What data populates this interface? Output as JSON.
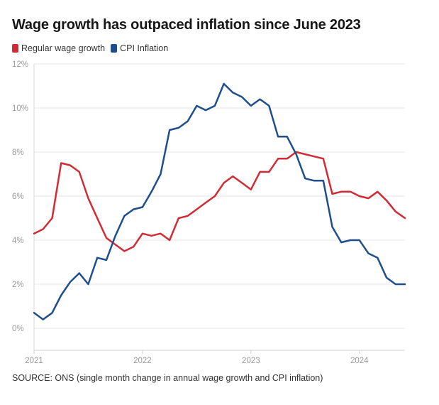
{
  "chart_data": {
    "type": "line",
    "title": "Wage growth has outpaced inflation since June 2023",
    "source": "SOURCE: ONS (single month change in annual wage growth and CPI inflation)",
    "y_ticks": [
      "12%",
      "10%",
      "8%",
      "6%",
      "4%",
      "2%",
      "0%"
    ],
    "y_tick_values": [
      12,
      10,
      8,
      6,
      4,
      2,
      0
    ],
    "x_ticks": [
      "2021",
      "2022",
      "2023",
      "2024"
    ],
    "x_tick_values": [
      2021,
      2022,
      2023,
      2024
    ],
    "xlim": [
      2021,
      2024.42
    ],
    "ylim": [
      -1,
      12
    ],
    "grid": true,
    "legend_placement": "top-left",
    "series": [
      {
        "name": "Regular wage growth",
        "color": "#d12c35",
        "x": [
          2021.0,
          2021.083,
          2021.167,
          2021.25,
          2021.333,
          2021.417,
          2021.5,
          2021.583,
          2021.667,
          2021.75,
          2021.833,
          2021.917,
          2022.0,
          2022.083,
          2022.167,
          2022.25,
          2022.333,
          2022.417,
          2022.5,
          2022.583,
          2022.667,
          2022.75,
          2022.833,
          2022.917,
          2023.0,
          2023.083,
          2023.167,
          2023.25,
          2023.333,
          2023.417,
          2023.5,
          2023.583,
          2023.667,
          2023.75,
          2023.833,
          2023.917,
          2024.0,
          2024.083,
          2024.167,
          2024.25,
          2024.333,
          2024.42
        ],
        "values": [
          4.3,
          4.5,
          5.0,
          7.5,
          7.4,
          7.1,
          5.9,
          5.0,
          4.1,
          3.8,
          3.5,
          3.7,
          4.3,
          4.2,
          4.3,
          4.0,
          5.0,
          5.1,
          5.4,
          5.7,
          6.0,
          6.6,
          6.9,
          6.6,
          6.3,
          7.1,
          7.1,
          7.7,
          7.7,
          8.0,
          7.9,
          7.8,
          7.7,
          6.1,
          6.2,
          6.2,
          6.0,
          5.9,
          6.2,
          5.8,
          5.3,
          5.0
        ]
      },
      {
        "name": "CPI Inflation",
        "color": "#1f4e8c",
        "x": [
          2021.0,
          2021.083,
          2021.167,
          2021.25,
          2021.333,
          2021.417,
          2021.5,
          2021.583,
          2021.667,
          2021.75,
          2021.833,
          2021.917,
          2022.0,
          2022.083,
          2022.167,
          2022.25,
          2022.333,
          2022.417,
          2022.5,
          2022.583,
          2022.667,
          2022.75,
          2022.833,
          2022.917,
          2023.0,
          2023.083,
          2023.167,
          2023.25,
          2023.333,
          2023.417,
          2023.5,
          2023.583,
          2023.667,
          2023.75,
          2023.833,
          2023.917,
          2024.0,
          2024.083,
          2024.167,
          2024.25,
          2024.333,
          2024.42
        ],
        "values": [
          0.7,
          0.4,
          0.7,
          1.5,
          2.1,
          2.5,
          2.0,
          3.2,
          3.1,
          4.2,
          5.1,
          5.4,
          5.5,
          6.2,
          7.0,
          9.0,
          9.1,
          9.4,
          10.1,
          9.9,
          10.1,
          11.1,
          10.7,
          10.5,
          10.1,
          10.4,
          10.1,
          8.7,
          8.7,
          7.9,
          6.8,
          6.7,
          6.7,
          4.6,
          3.9,
          4.0,
          4.0,
          3.4,
          3.2,
          2.3,
          2.0,
          2.0
        ]
      }
    ]
  }
}
